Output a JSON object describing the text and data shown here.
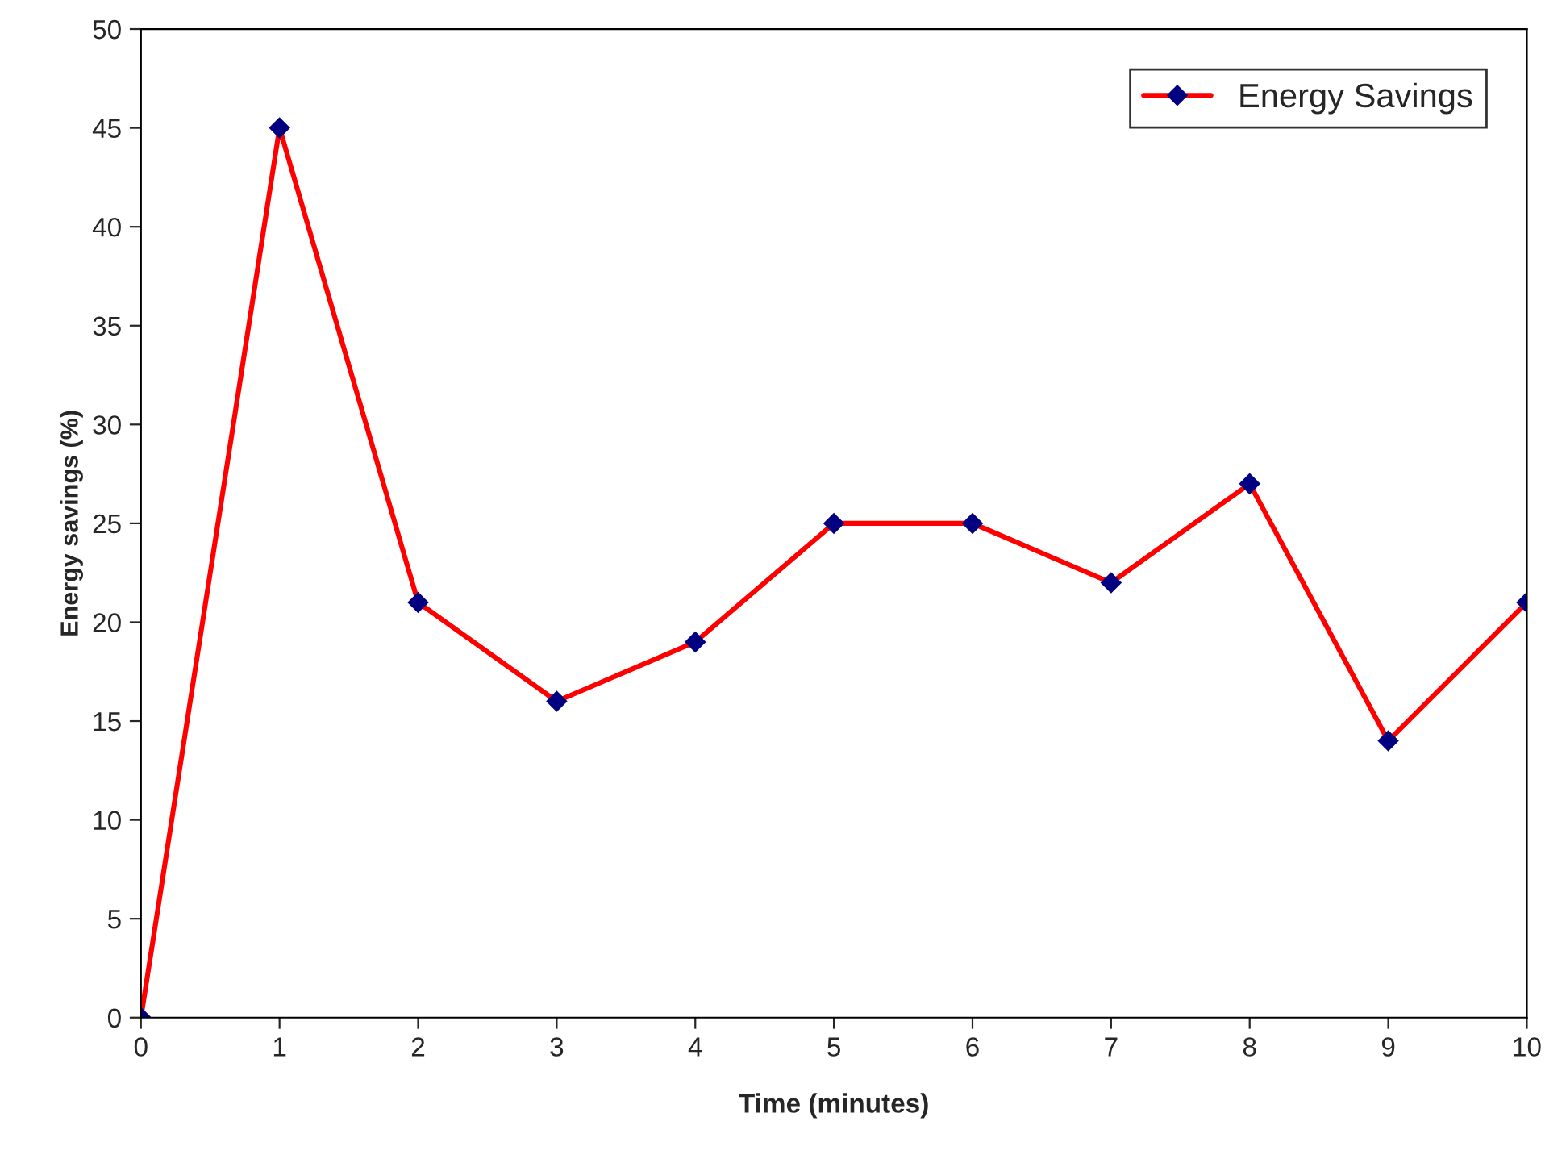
{
  "chart_data": {
    "type": "line",
    "xlabel": "Time (minutes)",
    "ylabel": "Energy savings (%)",
    "x": [
      0,
      1,
      2,
      3,
      4,
      5,
      6,
      7,
      8,
      9,
      10
    ],
    "series": [
      {
        "name": "Energy Savings",
        "color": "#ff0000",
        "values": [
          0,
          45,
          21,
          16,
          19,
          25,
          25,
          22,
          27,
          14,
          21
        ]
      }
    ],
    "xlim": [
      0,
      10
    ],
    "xticks": [
      0,
      1,
      2,
      3,
      4,
      5,
      6,
      7,
      8,
      9,
      10
    ],
    "ylim": [
      0,
      50
    ],
    "yticks": [
      0,
      5,
      10,
      15,
      20,
      25,
      30,
      35,
      40,
      45,
      50
    ],
    "grid": false,
    "legend": "top right",
    "marker": "diamond",
    "line_style": "solid"
  }
}
